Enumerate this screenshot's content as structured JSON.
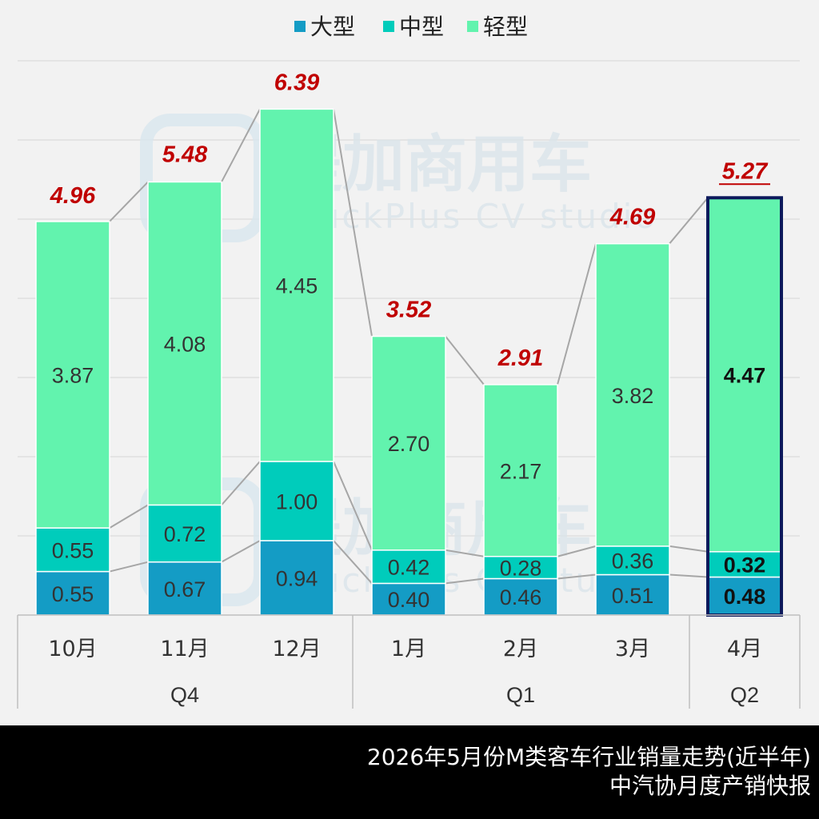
{
  "legend": [
    {
      "key": "large",
      "label": "大型",
      "color": "#149cc5"
    },
    {
      "key": "medium",
      "label": "中型",
      "color": "#00ccbb"
    },
    {
      "key": "light",
      "label": "轻型",
      "color": "#62f3ae"
    }
  ],
  "watermark": {
    "cn": "提加商用车",
    "en": "TruckPlus CV studio"
  },
  "chart_data": {
    "type": "bar",
    "stacked": true,
    "categories": [
      "10月",
      "11月",
      "12月",
      "1月",
      "2月",
      "3月",
      "4月"
    ],
    "groups": [
      {
        "label": "Q4",
        "categories": [
          "10月",
          "11月",
          "12月"
        ]
      },
      {
        "label": "Q1",
        "categories": [
          "1月",
          "2月",
          "3月"
        ]
      },
      {
        "label": "Q2",
        "categories": [
          "4月"
        ]
      }
    ],
    "series": [
      {
        "name": "大型",
        "values": [
          0.55,
          0.67,
          0.94,
          0.4,
          0.46,
          0.51,
          0.48
        ],
        "labels": [
          "0.55",
          "0.67",
          "0.94",
          "0.40",
          "0.46",
          "0.51",
          "0.48"
        ]
      },
      {
        "name": "中型",
        "values": [
          0.55,
          0.72,
          1.0,
          0.42,
          0.28,
          0.36,
          0.32
        ],
        "labels": [
          "0.55",
          "0.72",
          "1.00",
          "0.42",
          "0.28",
          "0.36",
          "0.32"
        ]
      },
      {
        "name": "轻型",
        "values": [
          3.87,
          4.08,
          4.45,
          2.7,
          2.17,
          3.82,
          4.47
        ],
        "labels": [
          "3.87",
          "4.08",
          "4.45",
          "2.70",
          "2.17",
          "3.82",
          "4.47"
        ]
      }
    ],
    "totals": [
      4.96,
      5.48,
      6.39,
      3.52,
      2.91,
      4.69,
      5.27
    ],
    "total_labels": [
      "4.96",
      "5.48",
      "6.39",
      "3.52",
      "2.91",
      "4.69",
      "5.27"
    ],
    "highlight_index": 6,
    "ylim": [
      0,
      7
    ],
    "grid": true,
    "legend_position": "top-center",
    "total_color": "#c00000"
  },
  "footer": {
    "line1": "2026年5月份M类客车行业销量走势(近半年)",
    "line2": "中汽协月度产销快报"
  }
}
